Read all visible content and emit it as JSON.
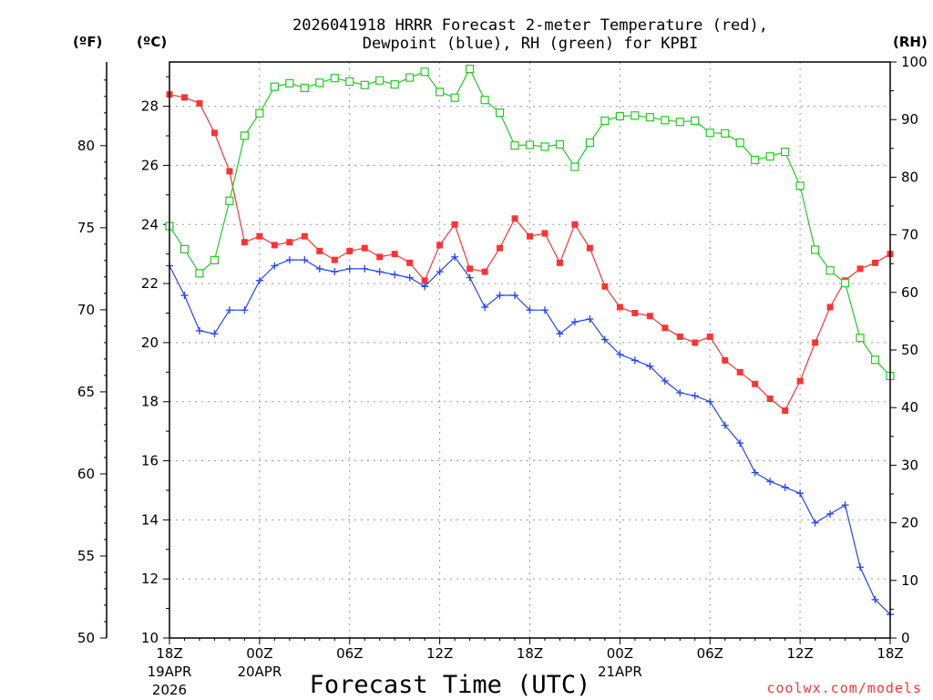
{
  "chart_data": {
    "type": "line",
    "title_line1": "2026041918 HRRR Forecast 2-meter Temperature (red),",
    "title_line2": "Dewpoint (blue), RH (green) for KPBI",
    "xlabel": "Forecast Time (UTC)",
    "credit": "coolwx.com/models",
    "unit_f": "(ºF)",
    "unit_c": "(ºC)",
    "unit_rh": "(RH)",
    "x_range_hours": [
      0,
      48
    ],
    "yleft_c_range": [
      10,
      29.5
    ],
    "yright_rh_range": [
      0,
      100
    ],
    "yfar_f_range": [
      50,
      85
    ],
    "c_ticks": [
      {
        "v": 10,
        "label": "10"
      },
      {
        "v": 12,
        "label": "12"
      },
      {
        "v": 14,
        "label": "14"
      },
      {
        "v": 16,
        "label": "16"
      },
      {
        "v": 18,
        "label": "18"
      },
      {
        "v": 20,
        "label": "20"
      },
      {
        "v": 22,
        "label": "22"
      },
      {
        "v": 24,
        "label": "24"
      },
      {
        "v": 26,
        "label": "26"
      },
      {
        "v": 28,
        "label": "28"
      }
    ],
    "rh_ticks": [
      {
        "v": 0,
        "label": "0"
      },
      {
        "v": 10,
        "label": "10"
      },
      {
        "v": 20,
        "label": "20"
      },
      {
        "v": 30,
        "label": "30"
      },
      {
        "v": 40,
        "label": "40"
      },
      {
        "v": 50,
        "label": "50"
      },
      {
        "v": 60,
        "label": "60"
      },
      {
        "v": 70,
        "label": "70"
      },
      {
        "v": 80,
        "label": "80"
      },
      {
        "v": 90,
        "label": "90"
      },
      {
        "v": 100,
        "label": "100"
      }
    ],
    "f_ticks": [
      {
        "v": 50,
        "label": "50"
      },
      {
        "v": 55,
        "label": "55"
      },
      {
        "v": 60,
        "label": "60"
      },
      {
        "v": 65,
        "label": "65"
      },
      {
        "v": 70,
        "label": "70"
      },
      {
        "v": 75,
        "label": "75"
      },
      {
        "v": 80,
        "label": "80"
      }
    ],
    "x_ticks": [
      {
        "h": 0,
        "label": "18Z",
        "date": "19APR",
        "year": "2026"
      },
      {
        "h": 6,
        "label": "00Z",
        "date": "20APR",
        "year": ""
      },
      {
        "h": 12,
        "label": "06Z",
        "date": "",
        "year": ""
      },
      {
        "h": 18,
        "label": "12Z",
        "date": "",
        "year": ""
      },
      {
        "h": 24,
        "label": "18Z",
        "date": "",
        "year": ""
      },
      {
        "h": 30,
        "label": "00Z",
        "date": "21APR",
        "year": ""
      },
      {
        "h": 36,
        "label": "06Z",
        "date": "",
        "year": ""
      },
      {
        "h": 42,
        "label": "12Z",
        "date": "",
        "year": ""
      },
      {
        "h": 48,
        "label": "18Z",
        "date": "",
        "year": ""
      }
    ],
    "series": [
      {
        "name": "Temperature",
        "color": "#ff3333",
        "marker": "square-filled",
        "units": "C",
        "values": [
          28.4,
          28.3,
          28.1,
          27.1,
          25.8,
          23.4,
          23.6,
          23.3,
          23.4,
          23.6,
          23.1,
          22.8,
          23.1,
          23.2,
          22.9,
          23.0,
          22.7,
          22.1,
          23.3,
          24.0,
          22.5,
          22.4,
          23.2,
          24.2,
          23.6,
          23.7,
          22.7,
          24.0,
          23.2,
          21.9,
          21.2,
          21.0,
          20.9,
          20.5,
          20.2,
          20.0,
          20.2,
          19.4,
          19.0,
          18.6,
          18.1,
          17.7,
          18.7,
          20.0,
          21.2,
          22.1,
          22.5,
          22.7,
          23.0
        ]
      },
      {
        "name": "Dewpoint",
        "color": "#2244ff",
        "marker": "plus",
        "units": "C",
        "values": [
          22.6,
          21.6,
          20.4,
          20.3,
          21.1,
          21.1,
          22.1,
          22.6,
          22.8,
          22.8,
          22.5,
          22.4,
          22.5,
          22.5,
          22.4,
          22.3,
          22.2,
          21.9,
          22.4,
          22.9,
          22.2,
          21.2,
          21.6,
          21.6,
          21.1,
          21.1,
          20.3,
          20.7,
          20.8,
          20.1,
          19.6,
          19.4,
          19.2,
          18.7,
          18.3,
          18.2,
          18.0,
          17.2,
          16.6,
          15.6,
          15.3,
          15.1,
          14.9,
          13.9,
          14.2,
          14.5,
          12.4,
          11.3,
          10.8
        ]
      },
      {
        "name": "RH",
        "color": "#22cc22",
        "marker": "square-open",
        "units": "%",
        "values": [
          71.5,
          67.5,
          63.3,
          65.6,
          75.9,
          87.2,
          91.1,
          95.7,
          96.3,
          95.5,
          96.4,
          97.2,
          96.6,
          96.0,
          96.8,
          96.1,
          97.3,
          98.3,
          94.8,
          93.8,
          98.8,
          93.4,
          91.2,
          85.5,
          85.6,
          85.3,
          85.7,
          81.8,
          86.0,
          89.8,
          90.6,
          90.7,
          90.4,
          89.9,
          89.6,
          89.8,
          87.7,
          87.6,
          86.0,
          83.0,
          83.6,
          84.4,
          78.5,
          67.4,
          63.8,
          61.6,
          52.1,
          48.3,
          45.5
        ]
      }
    ]
  }
}
